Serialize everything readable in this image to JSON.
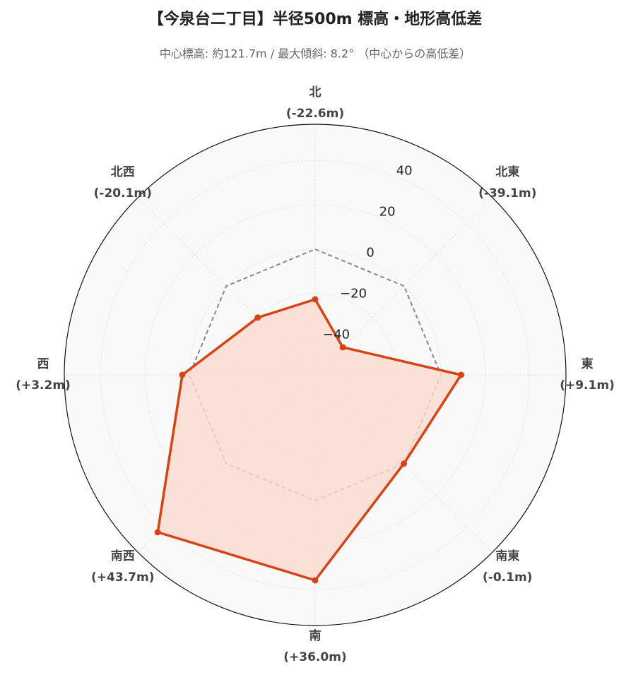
{
  "chart_data": {
    "type": "radar",
    "title": "【今泉台二丁目】半径500m 標高・地形高低差",
    "subtitle": "中心標高: 約121.7m / 最大傾斜: 8.2° （中心からの高低差）",
    "categories": [
      "北",
      "北東",
      "東",
      "南東",
      "南",
      "南西",
      "西",
      "北西"
    ],
    "series": [
      {
        "color": "#d84315",
        "fill": "#fbd9cf",
        "values": [
          -22.6,
          -39.1,
          9.1,
          -0.1,
          36.0,
          43.7,
          3.2,
          -20.1
        ],
        "value_labels": [
          "(-22.6m)",
          "(-39.1m)",
          "(+9.1m)",
          "(-0.1m)",
          "(+36.0m)",
          "(+43.7m)",
          "(+3.2m)",
          "(-20.1m)"
        ]
      },
      {
        "color": "#888888",
        "dashed": true,
        "values": [
          0,
          0,
          0,
          0,
          0,
          0,
          0,
          0
        ]
      }
    ],
    "ylim": [
      -56.7,
      56.4
    ],
    "yticks": [
      {
        "value": -40,
        "label": "−40"
      },
      {
        "value": -20,
        "label": "−20"
      },
      0,
      20,
      40
    ],
    "grid": true
  }
}
